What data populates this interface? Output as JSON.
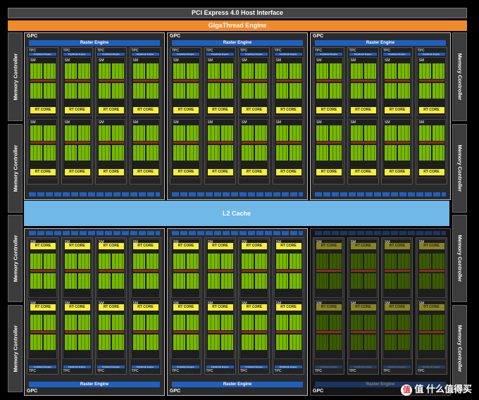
{
  "host_interface": "PCI Express 4.0 Host Interface",
  "gigathread": "GigaThread Engine",
  "l2_cache": "L2 Cache",
  "memory_controller": "Memory Controller",
  "gpc_label": "GPC",
  "raster_engine": "Raster Engine",
  "tpc_label": "TPC",
  "polymorph_engine": "PolyMorph Engine",
  "sm_label": "SM",
  "rt_core": "RT CORE",
  "watermark": "值 什么值得买",
  "colors": {
    "gigathread": "#f28a2a",
    "l2_cache": "#6fb8e8",
    "cuda_core": "#76b900",
    "rt_core": "#f4ee3a",
    "engine_blue": "#1f5fc0"
  }
}
